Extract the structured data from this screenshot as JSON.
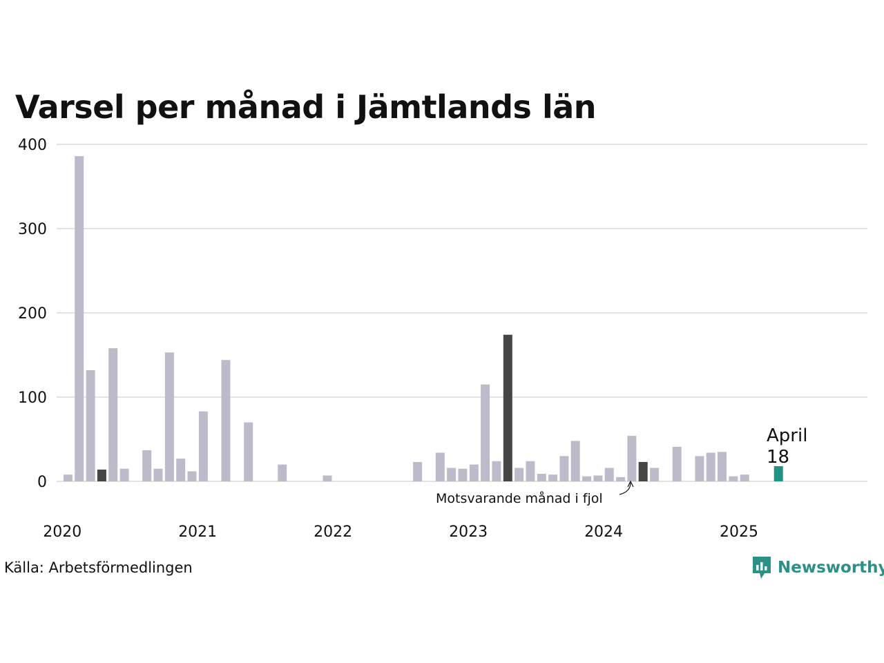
{
  "title": "Varsel per månad i Jämtlands län",
  "source": "Källa: Arbetsförmedlingen",
  "brand": {
    "name": "Newsworthy",
    "icon": "newsworthy-logo-icon",
    "color": "#2a9187"
  },
  "annotation": {
    "text": "Motsvarande månad i fjol"
  },
  "highlight": {
    "month_label": "April",
    "value_label": "18"
  },
  "colors": {
    "bar": "#bdbbc9",
    "same_month": "#454545",
    "current": "#1f9384",
    "grid": "#e3e3e3"
  },
  "chart_data": {
    "type": "bar",
    "title": "Varsel per månad i Jämtlands län",
    "xlabel": "",
    "ylabel": "",
    "ylim": [
      0,
      400
    ],
    "yticks": [
      0,
      100,
      200,
      300,
      400
    ],
    "xticks": [
      "2020",
      "2021",
      "2022",
      "2023",
      "2024",
      "2025"
    ],
    "grid": true,
    "categories": [
      "2020-01",
      "2020-02",
      "2020-03",
      "2020-04",
      "2020-05",
      "2020-06",
      "2020-07",
      "2020-08",
      "2020-09",
      "2020-10",
      "2020-11",
      "2020-12",
      "2021-01",
      "2021-02",
      "2021-03",
      "2021-04",
      "2021-05",
      "2021-06",
      "2021-07",
      "2021-08",
      "2021-09",
      "2021-10",
      "2021-11",
      "2021-12",
      "2022-01",
      "2022-02",
      "2022-03",
      "2022-04",
      "2022-05",
      "2022-06",
      "2022-07",
      "2022-08",
      "2022-09",
      "2022-10",
      "2022-11",
      "2022-12",
      "2023-01",
      "2023-02",
      "2023-03",
      "2023-04",
      "2023-05",
      "2023-06",
      "2023-07",
      "2023-08",
      "2023-09",
      "2023-10",
      "2023-11",
      "2023-12",
      "2024-01",
      "2024-02",
      "2024-03",
      "2024-04",
      "2024-05",
      "2024-06",
      "2024-07",
      "2024-08",
      "2024-09",
      "2024-10",
      "2024-11",
      "2024-12",
      "2025-01",
      "2025-02",
      "2025-03",
      "2025-04"
    ],
    "values": [
      8,
      386,
      132,
      14,
      158,
      15,
      0,
      37,
      15,
      153,
      27,
      12,
      83,
      0,
      144,
      0,
      70,
      0,
      0,
      20,
      0,
      0,
      0,
      7,
      0,
      0,
      0,
      0,
      0,
      0,
      0,
      23,
      0,
      34,
      16,
      15,
      20,
      115,
      24,
      174,
      16,
      24,
      9,
      8,
      30,
      48,
      6,
      7,
      16,
      5,
      54,
      23,
      16,
      0,
      41,
      0,
      30,
      34,
      35,
      6,
      8,
      0,
      0,
      18
    ],
    "same_month_last_years": [
      "2020-04",
      "2021-04",
      "2023-04",
      "2024-04"
    ],
    "current": "2025-04"
  }
}
